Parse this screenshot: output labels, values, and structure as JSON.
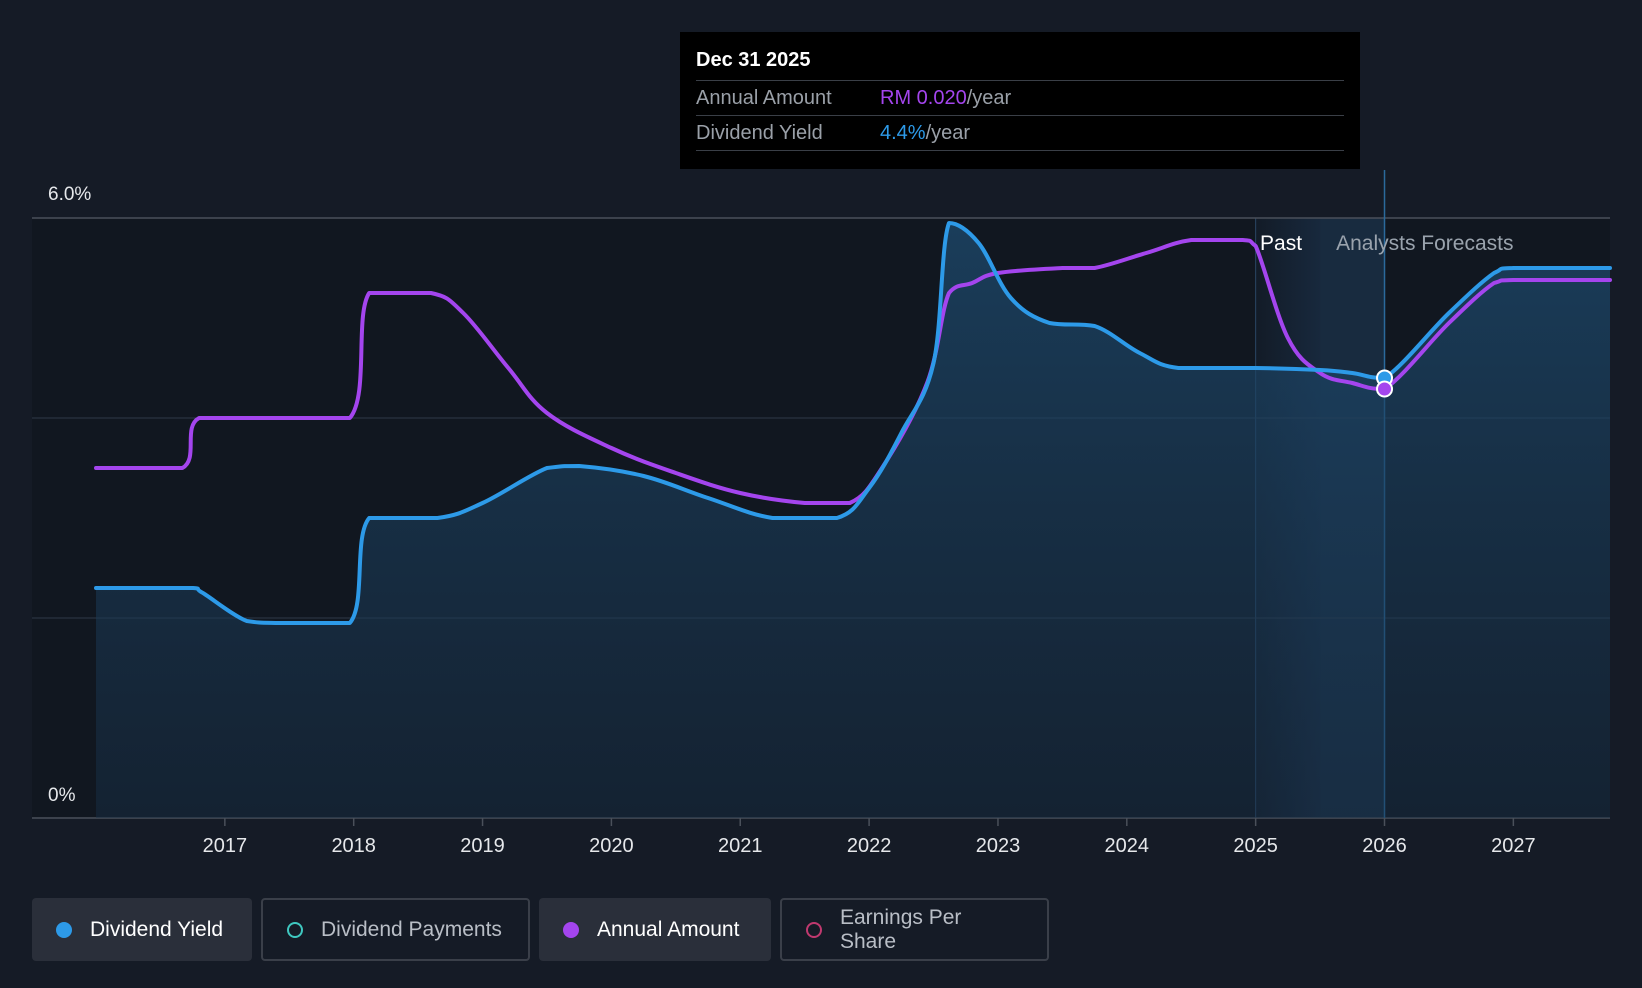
{
  "chart_data": {
    "type": "line",
    "y_axis": {
      "max_label": "6.0%",
      "min_label": "0%",
      "ylim": [
        0,
        6
      ]
    },
    "x_tick_labels": [
      "2017",
      "2018",
      "2019",
      "2020",
      "2021",
      "2022",
      "2023",
      "2024",
      "2025",
      "2026",
      "2027"
    ],
    "x_tick_values": [
      2017,
      2018,
      2019,
      2020,
      2021,
      2022,
      2023,
      2024,
      2025,
      2026,
      2027
    ],
    "xlim": [
      2016.0,
      2027.75
    ],
    "past_label": "Past",
    "forecast_label": "Analysts Forecasts",
    "past_band_start": 2025.0,
    "forecast_start": 2025.5,
    "cursor_x": 2026.0,
    "series": [
      {
        "name": "Dividend Yield",
        "color": "#2d9ae8",
        "points": [
          [
            2016.0,
            2.3
          ],
          [
            2016.75,
            2.3
          ],
          [
            2016.83,
            2.25
          ],
          [
            2017.17,
            1.97
          ],
          [
            2017.42,
            1.95
          ],
          [
            2017.97,
            1.95
          ],
          [
            2018.12,
            3.0
          ],
          [
            2018.65,
            3.0
          ],
          [
            2019.0,
            3.15
          ],
          [
            2019.5,
            3.5
          ],
          [
            2019.75,
            3.52
          ],
          [
            2020.25,
            3.42
          ],
          [
            2020.75,
            3.2
          ],
          [
            2021.25,
            3.0
          ],
          [
            2021.75,
            3.0
          ],
          [
            2022.0,
            3.3
          ],
          [
            2022.25,
            3.85
          ],
          [
            2022.5,
            4.55
          ],
          [
            2022.62,
            5.95
          ],
          [
            2022.85,
            5.75
          ],
          [
            2023.1,
            5.2
          ],
          [
            2023.4,
            4.95
          ],
          [
            2023.75,
            4.92
          ],
          [
            2024.1,
            4.65
          ],
          [
            2024.4,
            4.5
          ],
          [
            2025.0,
            4.5
          ],
          [
            2025.5,
            4.48
          ],
          [
            2025.75,
            4.45
          ],
          [
            2026.0,
            4.4
          ],
          [
            2026.5,
            5.05
          ],
          [
            2026.85,
            5.45
          ],
          [
            2027.0,
            5.5
          ],
          [
            2027.75,
            5.5
          ]
        ]
      },
      {
        "name": "Annual Amount",
        "color": "#a445ee",
        "points": [
          [
            2016.0,
            3.5
          ],
          [
            2016.67,
            3.5
          ],
          [
            2016.8,
            4.0
          ],
          [
            2017.97,
            4.0
          ],
          [
            2018.12,
            5.25
          ],
          [
            2018.6,
            5.25
          ],
          [
            2018.85,
            5.05
          ],
          [
            2019.2,
            4.5
          ],
          [
            2019.5,
            4.05
          ],
          [
            2020.0,
            3.7
          ],
          [
            2020.5,
            3.45
          ],
          [
            2021.0,
            3.25
          ],
          [
            2021.5,
            3.15
          ],
          [
            2021.85,
            3.15
          ],
          [
            2022.1,
            3.5
          ],
          [
            2022.45,
            4.35
          ],
          [
            2022.62,
            5.25
          ],
          [
            2022.8,
            5.35
          ],
          [
            2023.0,
            5.45
          ],
          [
            2023.5,
            5.5
          ],
          [
            2023.75,
            5.5
          ],
          [
            2024.15,
            5.65
          ],
          [
            2024.5,
            5.78
          ],
          [
            2024.9,
            5.78
          ],
          [
            2025.0,
            5.72
          ],
          [
            2025.25,
            4.8
          ],
          [
            2025.5,
            4.45
          ],
          [
            2025.75,
            4.35
          ],
          [
            2026.0,
            4.29
          ],
          [
            2026.5,
            4.95
          ],
          [
            2026.85,
            5.35
          ],
          [
            2027.0,
            5.38
          ],
          [
            2027.75,
            5.38
          ]
        ]
      }
    ],
    "highlight_points": [
      {
        "series": "Dividend Yield",
        "x": 2026.0,
        "y": 4.4,
        "color": "#2d9ae8"
      },
      {
        "series": "Annual Amount",
        "x": 2026.0,
        "y": 4.29,
        "color": "#a445ee"
      }
    ]
  },
  "tooltip": {
    "date": "Dec 31 2025",
    "rows": [
      {
        "label": "Annual Amount",
        "value": "RM 0.020",
        "unit": "/year",
        "color": "#a445ee"
      },
      {
        "label": "Dividend Yield",
        "value": "4.4%",
        "unit": "/year",
        "color": "#2d9ae8"
      }
    ]
  },
  "legend": [
    {
      "label": "Dividend Yield",
      "color": "#2d9ae8",
      "filled": true,
      "active": true
    },
    {
      "label": "Dividend Payments",
      "color": "#3fc8c0",
      "filled": false,
      "active": false
    },
    {
      "label": "Annual Amount",
      "color": "#a445ee",
      "filled": true,
      "active": true
    },
    {
      "label": "Earnings Per Share",
      "color": "#c0396f",
      "filled": false,
      "active": false
    }
  ]
}
